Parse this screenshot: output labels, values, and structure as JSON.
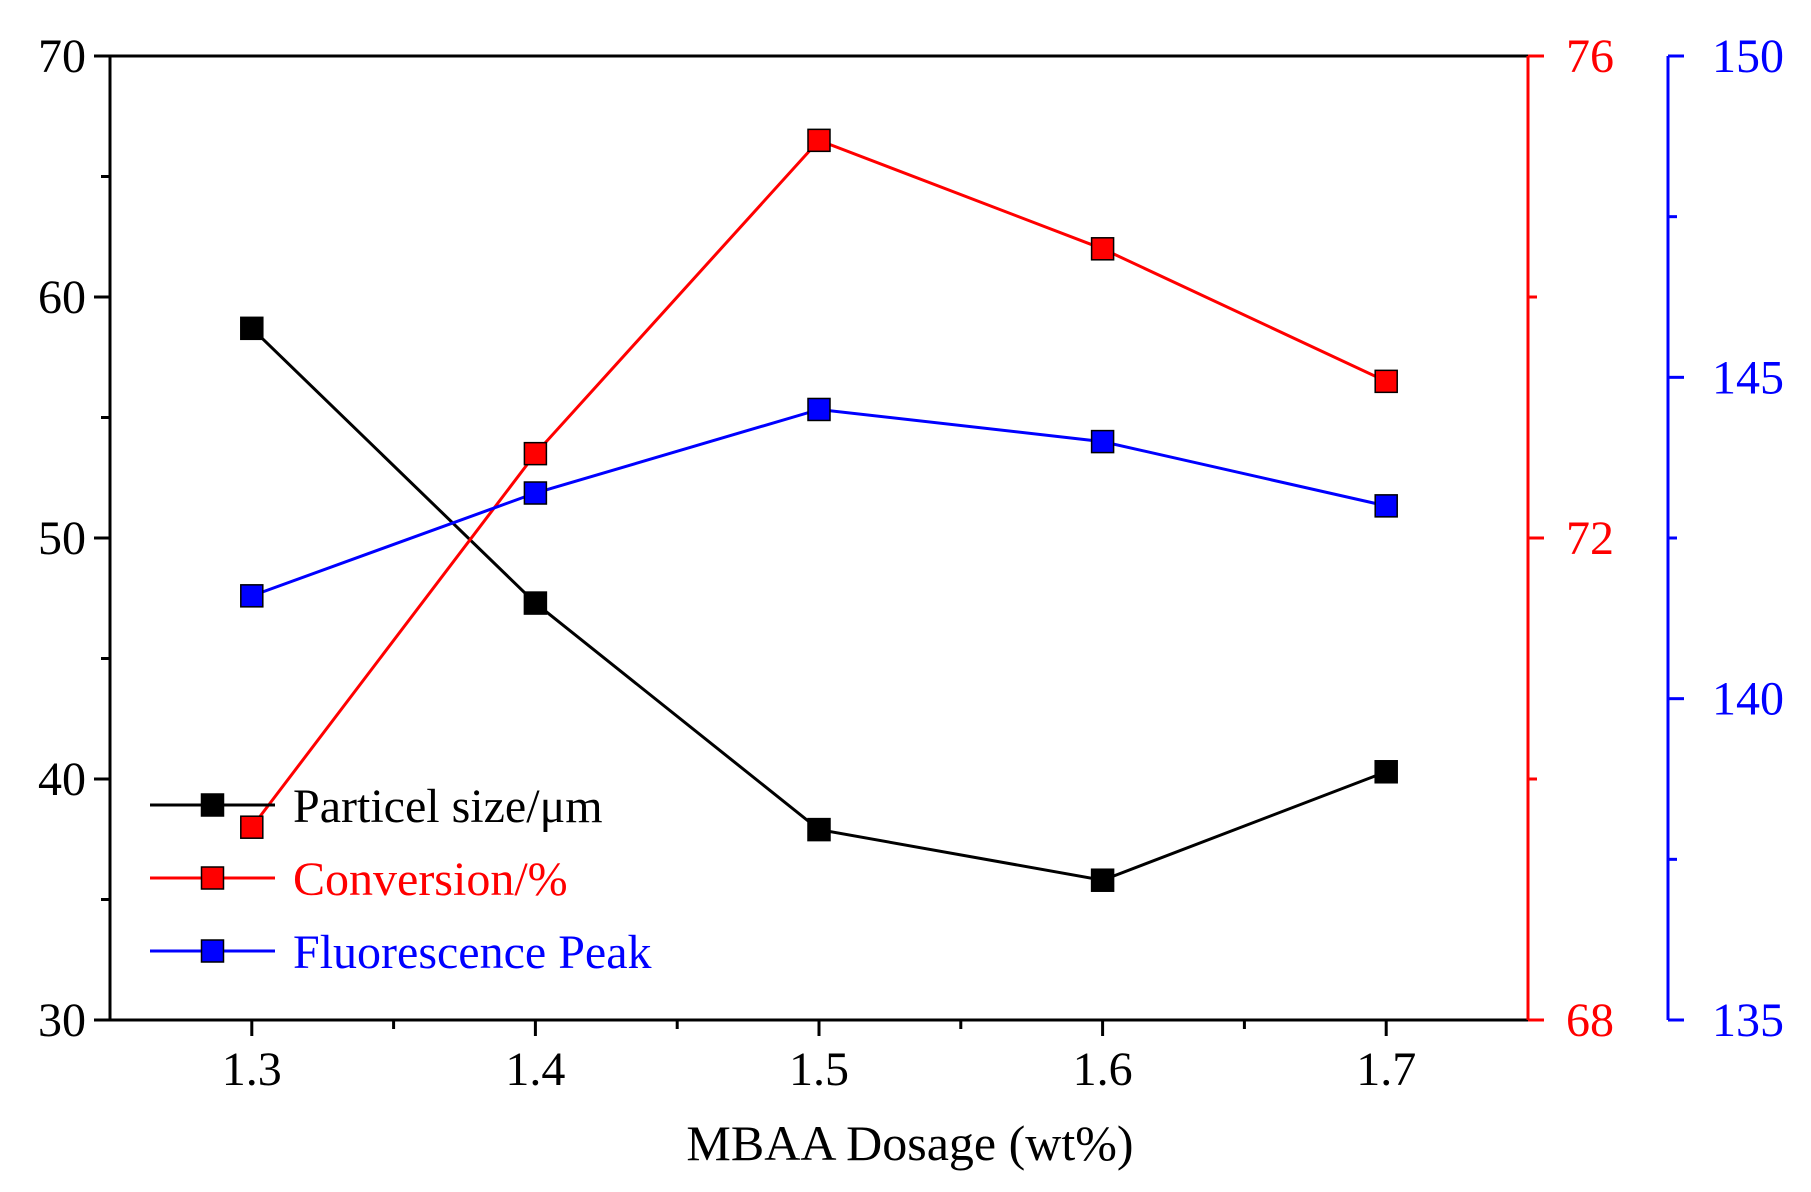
{
  "chart_data": {
    "type": "line",
    "title": "",
    "xlabel": "MBAA Dosage (wt%)",
    "x": [
      1.3,
      1.4,
      1.5,
      1.6,
      1.7
    ],
    "x_tick_labels": [
      "1.3",
      "1.4",
      "1.5",
      "1.6",
      "1.7"
    ],
    "xlim": [
      1.25,
      1.75
    ],
    "grid": false,
    "legend_position": "bottom-left",
    "axes": {
      "left": {
        "ylim": [
          30,
          70
        ],
        "ticks": [
          30,
          40,
          50,
          60,
          70
        ],
        "tick_labels": [
          "30",
          "40",
          "50",
          "60",
          "70"
        ],
        "color": "#000000"
      },
      "right1": {
        "ylim": [
          68,
          76
        ],
        "ticks": [
          68,
          72,
          76
        ],
        "tick_labels": [
          "68",
          "72",
          "76"
        ],
        "color": "#ff0000"
      },
      "right2": {
        "ylim": [
          135,
          150
        ],
        "ticks": [
          135,
          140,
          145,
          150
        ],
        "tick_labels": [
          "135",
          "140",
          "145",
          "150"
        ],
        "color": "#0000ff"
      }
    },
    "series": [
      {
        "name": "Particel size/μm",
        "axis": "left",
        "color": "#000000",
        "values": [
          58.7,
          47.3,
          37.9,
          35.8,
          40.3
        ]
      },
      {
        "name": "Conversion/%",
        "axis": "right1",
        "color": "#ff0000",
        "values": [
          69.6,
          72.7,
          75.3,
          74.4,
          73.3
        ]
      },
      {
        "name": "Fluorescence Peak",
        "axis": "right2",
        "color": "#0000ff",
        "values": [
          141.6,
          143.2,
          144.5,
          144.0,
          143.0
        ]
      }
    ]
  }
}
